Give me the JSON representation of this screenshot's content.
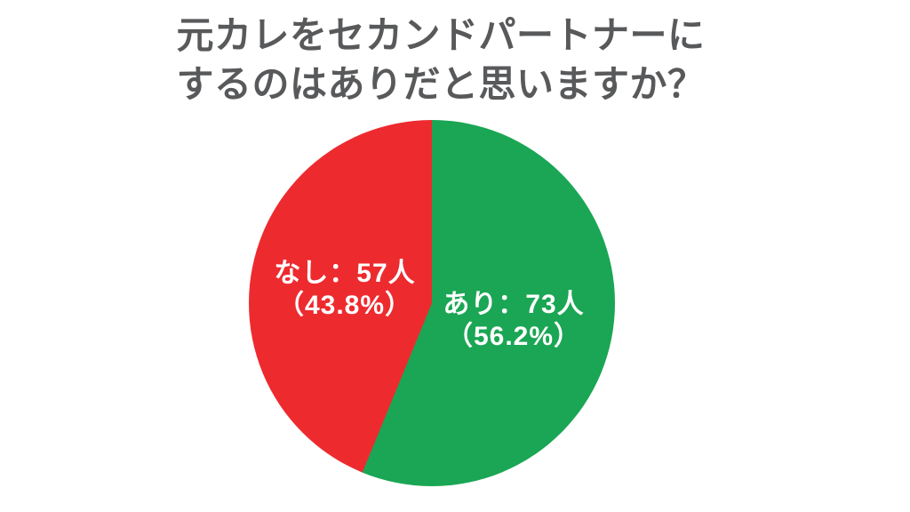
{
  "page": {
    "background_color": "#ffffff"
  },
  "title": {
    "line1": "元カレをセカンドパートナーに",
    "line2": "するのはありだと思いますか？",
    "color": "#58595b"
  },
  "chart_data": {
    "type": "pie",
    "title": "元カレをセカンドパートナーにするのはありだと思いますか？",
    "start_angle_deg": 0,
    "direction": "clockwise",
    "legend_position": "none",
    "label_placement": "inside",
    "label_text_color": "#ffffff",
    "slices": [
      {
        "label": "あり",
        "count": 73,
        "percent": 56.2,
        "color": "#1aa654",
        "display_line1": "あり：73人",
        "display_line2": "（56.2%）"
      },
      {
        "label": "なし",
        "count": 57,
        "percent": 43.8,
        "color": "#ed2b2f",
        "display_line1": "なし：57人",
        "display_line2": "（43.8%）"
      }
    ]
  }
}
